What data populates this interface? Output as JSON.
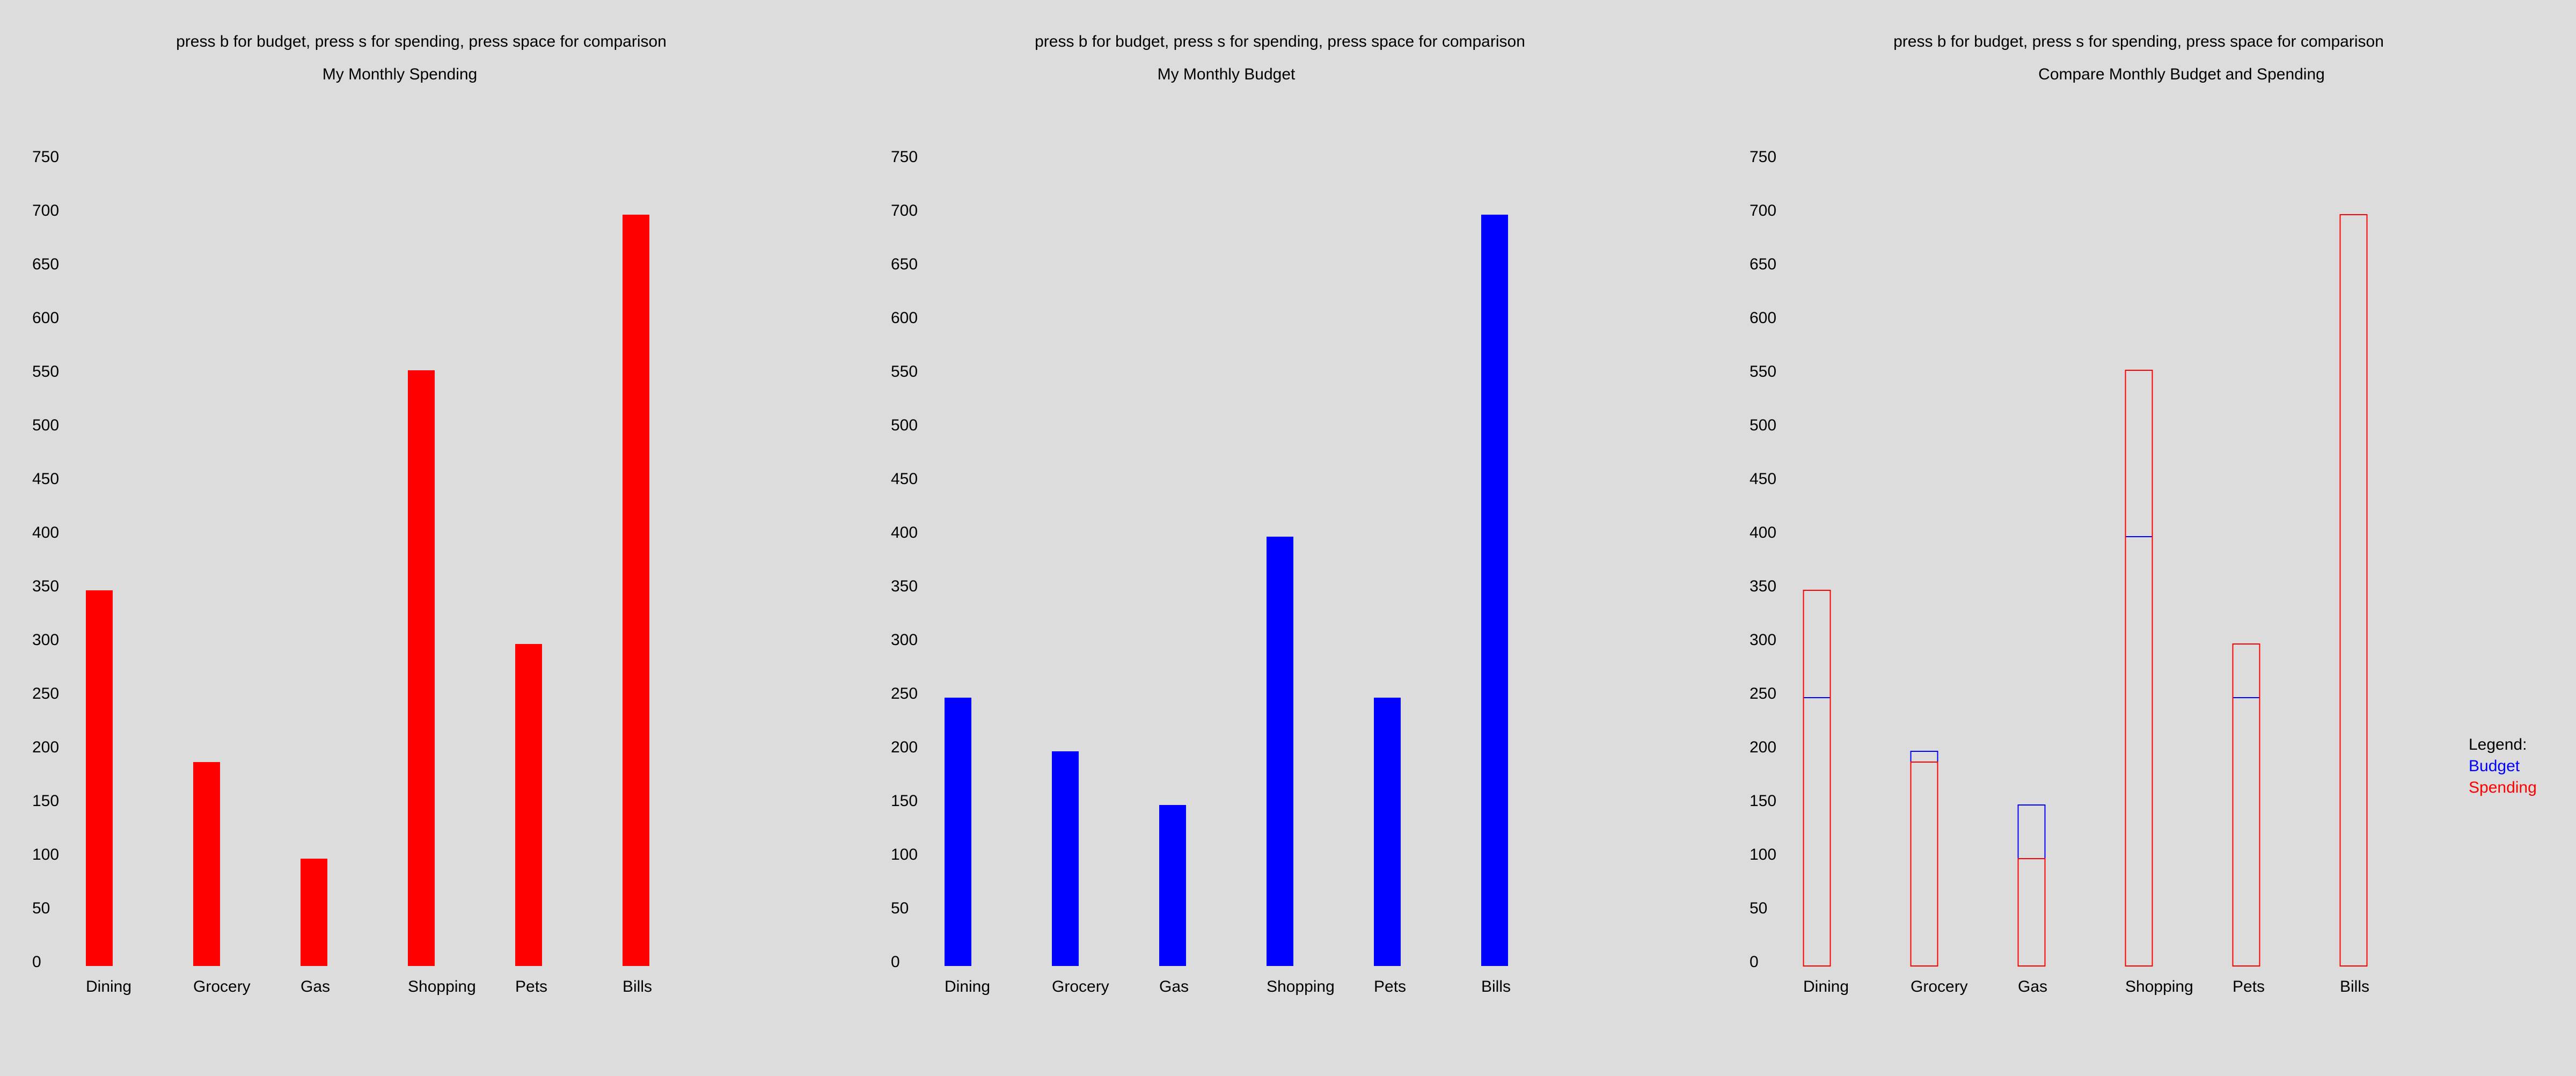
{
  "instructions": "press b for budget, press s for spending, press space for comparison",
  "panels": {
    "spending": {
      "title": "My Monthly Spending"
    },
    "budget": {
      "title": "My Monthly Budget"
    },
    "compare": {
      "title": "Compare Monthly Budget and Spending",
      "legend": {
        "title": "Legend:",
        "budget": "Budget",
        "spending": "Spending"
      }
    }
  },
  "colors": {
    "spending": "#ff0000",
    "budget": "#0000ff",
    "background": "#dcdcdc"
  },
  "chart_data": [
    {
      "type": "bar",
      "title": "My Monthly Spending",
      "categories": [
        "Dining",
        "Grocery",
        "Gas",
        "Shopping",
        "Pets",
        "Bills"
      ],
      "values": [
        350,
        190,
        100,
        555,
        300,
        700
      ],
      "y_ticks": [
        0,
        50,
        100,
        150,
        200,
        250,
        300,
        350,
        400,
        450,
        500,
        550,
        600,
        650,
        700,
        750
      ],
      "ylim": [
        0,
        750
      ],
      "grid": false
    },
    {
      "type": "bar",
      "title": "My Monthly Budget",
      "categories": [
        "Dining",
        "Grocery",
        "Gas",
        "Shopping",
        "Pets",
        "Bills"
      ],
      "values": [
        250,
        200,
        150,
        400,
        250,
        700
      ],
      "y_ticks": [
        0,
        50,
        100,
        150,
        200,
        250,
        300,
        350,
        400,
        450,
        500,
        550,
        600,
        650,
        700,
        750
      ],
      "ylim": [
        0,
        750
      ],
      "grid": false
    },
    {
      "type": "bar",
      "title": "Compare Monthly Budget and Spending",
      "categories": [
        "Dining",
        "Grocery",
        "Gas",
        "Shopping",
        "Pets",
        "Bills"
      ],
      "series": [
        {
          "name": "Budget",
          "values": [
            250,
            200,
            150,
            400,
            250,
            700
          ]
        },
        {
          "name": "Spending",
          "values": [
            350,
            190,
            100,
            555,
            300,
            700
          ]
        }
      ],
      "y_ticks": [
        0,
        50,
        100,
        150,
        200,
        250,
        300,
        350,
        400,
        450,
        500,
        550,
        600,
        650,
        700,
        750
      ],
      "ylim": [
        0,
        750
      ],
      "legend": "right",
      "grid": false
    }
  ]
}
